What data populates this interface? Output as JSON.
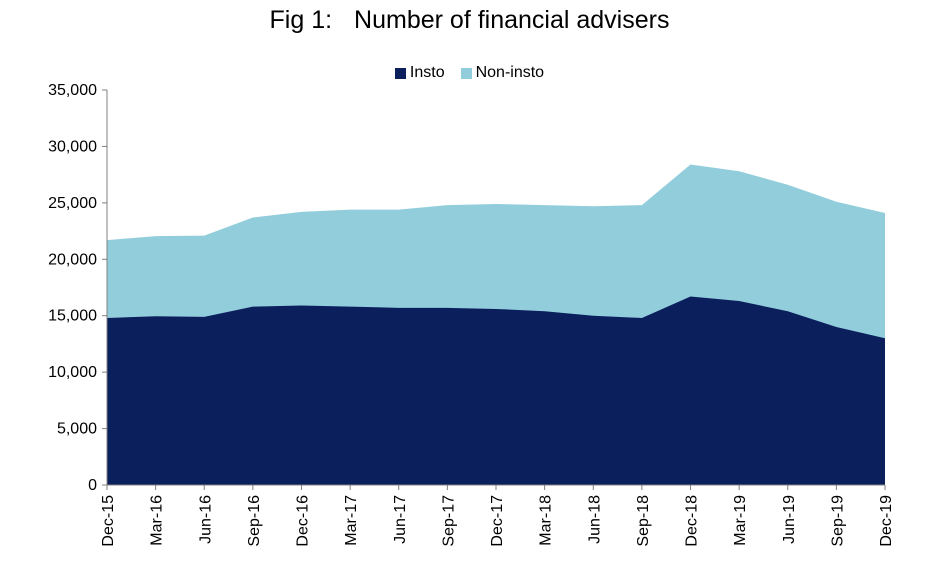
{
  "chart_data": {
    "type": "area",
    "stacked": true,
    "title": {
      "prefix": "Fig 1:",
      "text": "Number of financial advisers"
    },
    "xlabel": "",
    "ylabel": "",
    "categories": [
      "Dec-15",
      "Mar-16",
      "Jun-16",
      "Sep-16",
      "Dec-16",
      "Mar-17",
      "Jun-17",
      "Sep-17",
      "Dec-17",
      "Mar-18",
      "Jun-18",
      "Sep-18",
      "Dec-18",
      "Mar-19",
      "Jun-19",
      "Sep-19",
      "Dec-19"
    ],
    "series": [
      {
        "name": "Insto",
        "color": "#0b1f5c",
        "values": [
          14800,
          14950,
          14900,
          15800,
          15900,
          15800,
          15700,
          15700,
          15600,
          15400,
          15000,
          14800,
          16700,
          16300,
          15400,
          14000,
          13000
        ]
      },
      {
        "name": "Non-insto",
        "color": "#92cddc",
        "values": [
          6900,
          7100,
          7200,
          7900,
          8300,
          8600,
          8700,
          9100,
          9300,
          9400,
          9700,
          10000,
          11700,
          11500,
          11200,
          11100,
          11100
        ]
      }
    ],
    "ylim": [
      0,
      35000
    ],
    "yticks": [
      0,
      5000,
      10000,
      15000,
      20000,
      25000,
      30000,
      35000
    ],
    "ytick_labels": [
      "0",
      "5,000",
      "10,000",
      "15,000",
      "20,000",
      "25,000",
      "30,000",
      "35,000"
    ],
    "legend": "top-center",
    "grid": false
  }
}
